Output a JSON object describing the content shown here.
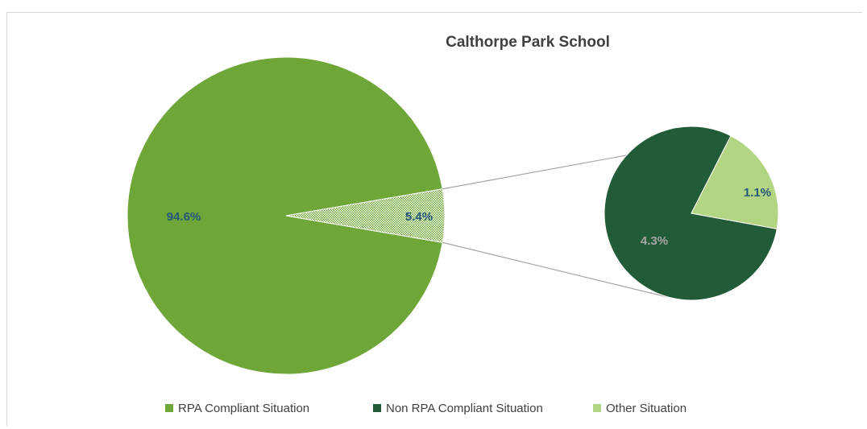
{
  "chart_data": {
    "type": "pie",
    "subtype": "pie-of-pie",
    "title": "Calthorpe Park School",
    "main_pie": [
      {
        "name": "RPA Compliant Situation",
        "value": 94.6,
        "label": "94.6%",
        "color": "#6ea637"
      },
      {
        "name": "Other",
        "value": 5.4,
        "label": "5.4%",
        "color": "#6ea637",
        "pattern": "dotted"
      }
    ],
    "secondary_pie": [
      {
        "name": "Non RPA Compliant Situation",
        "value": 4.3,
        "label": "4.3%",
        "color": "#225b38"
      },
      {
        "name": "Other Situation",
        "value": 1.1,
        "label": "1.1%",
        "color": "#b2d584"
      }
    ],
    "legend": {
      "position": "bottom",
      "items": [
        {
          "name": "RPA Compliant Situation",
          "color": "#6ea637"
        },
        {
          "name": "Non RPA Compliant Situation",
          "color": "#225b38"
        },
        {
          "name": "Other Situation",
          "color": "#b2d584"
        }
      ]
    },
    "label_colors": {
      "dark_blue": "#24577a",
      "grey": "#a6a6a6"
    },
    "connector_color": "#a6a6a6"
  }
}
